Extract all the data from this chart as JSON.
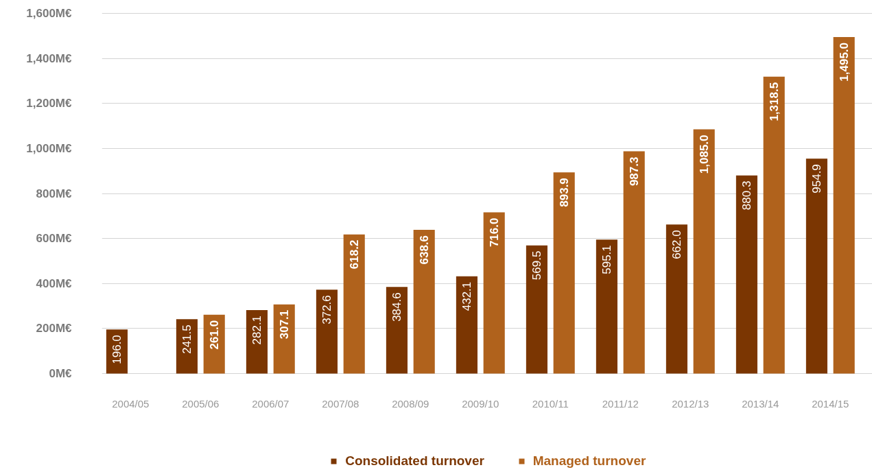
{
  "chart_data": {
    "type": "bar",
    "categories": [
      "2004/05",
      "2005/06",
      "2006/07",
      "2007/08",
      "2008/09",
      "2009/10",
      "2010/11",
      "2011/12",
      "2012/13",
      "2013/14",
      "2014/15"
    ],
    "series": [
      {
        "name": "Consolidated turnover",
        "color": "#7b3602",
        "values": [
          196.0,
          241.5,
          282.1,
          372.6,
          384.6,
          432.1,
          569.5,
          595.1,
          662.0,
          880.3,
          954.9
        ],
        "value_labels": [
          "196.0",
          "241.5",
          "282.1",
          "372.6",
          "384.6",
          "432.1",
          "569.5",
          "595.1",
          "662.0",
          "880.3",
          "954.9"
        ]
      },
      {
        "name": "Managed turnover",
        "color": "#b0621c",
        "values": [
          null,
          261.0,
          307.1,
          618.2,
          638.6,
          716.0,
          893.9,
          987.3,
          1085.0,
          1318.5,
          1495.0
        ],
        "value_labels": [
          null,
          "261.0",
          "307.1",
          "618.2",
          "638.6",
          "716.0",
          "893.9",
          "987.3",
          "1,085.0",
          "1,318.5",
          "1,495.0"
        ]
      }
    ],
    "ylim": [
      0,
      1600
    ],
    "yticks": [
      {
        "value": 0,
        "label": "0M€"
      },
      {
        "value": 200,
        "label": "200M€"
      },
      {
        "value": 400,
        "label": "400M€"
      },
      {
        "value": 600,
        "label": "600M€"
      },
      {
        "value": 800,
        "label": "800M€"
      },
      {
        "value": 1000,
        "label": "1,000M€"
      },
      {
        "value": 1200,
        "label": "1,200M€"
      },
      {
        "value": 1400,
        "label": "1,400M€"
      },
      {
        "value": 1600,
        "label": "1,600M€"
      }
    ],
    "grid": "y",
    "legend": "bottom"
  }
}
